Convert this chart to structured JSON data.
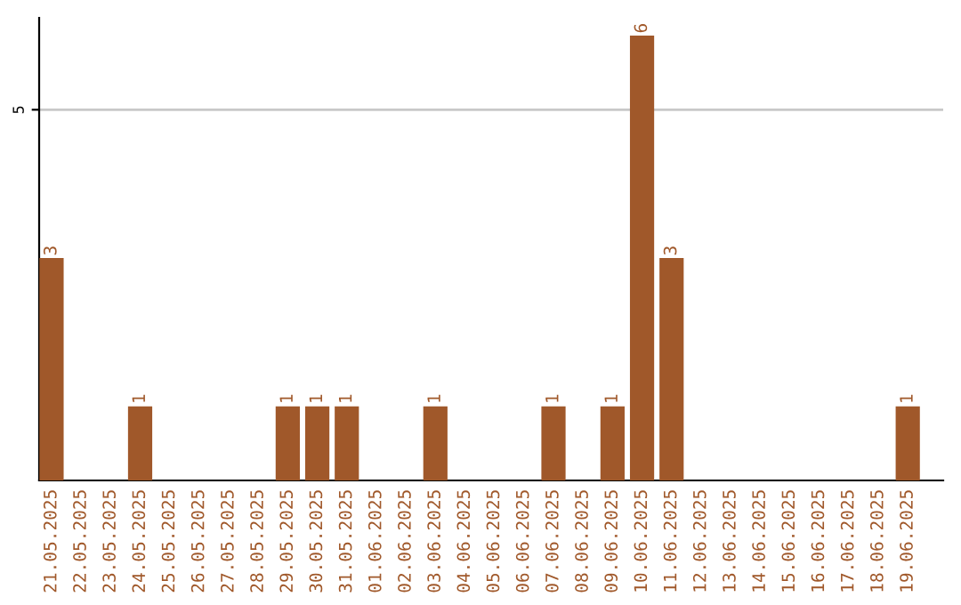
{
  "chart_data": {
    "type": "bar",
    "categories": [
      "21.05.2025",
      "22.05.2025",
      "23.05.2025",
      "24.05.2025",
      "25.05.2025",
      "26.05.2025",
      "27.05.2025",
      "28.05.2025",
      "29.05.2025",
      "30.05.2025",
      "31.05.2025",
      "01.06.2025",
      "02.06.2025",
      "03.06.2025",
      "04.06.2025",
      "05.06.2025",
      "06.06.2025",
      "07.06.2025",
      "08.06.2025",
      "09.06.2025",
      "10.06.2025",
      "11.06.2025",
      "12.06.2025",
      "13.06.2025",
      "14.06.2025",
      "15.06.2025",
      "16.06.2025",
      "17.06.2025",
      "18.06.2025",
      "19.06.2025"
    ],
    "values": [
      3,
      0,
      0,
      1,
      0,
      0,
      0,
      0,
      1,
      1,
      1,
      0,
      0,
      1,
      0,
      0,
      0,
      1,
      0,
      1,
      6,
      3,
      0,
      0,
      0,
      0,
      0,
      0,
      0,
      1
    ],
    "value_labels": [
      "3",
      null,
      null,
      "1",
      null,
      null,
      null,
      null,
      "1",
      "1",
      "1",
      null,
      null,
      "1",
      null,
      null,
      null,
      "1",
      null,
      "1",
      "6",
      "3",
      null,
      null,
      null,
      null,
      null,
      null,
      null,
      "1"
    ],
    "color": "#a0582a",
    "ylim": [
      0,
      6.24
    ],
    "yticks": [
      5
    ],
    "grid": "y"
  }
}
